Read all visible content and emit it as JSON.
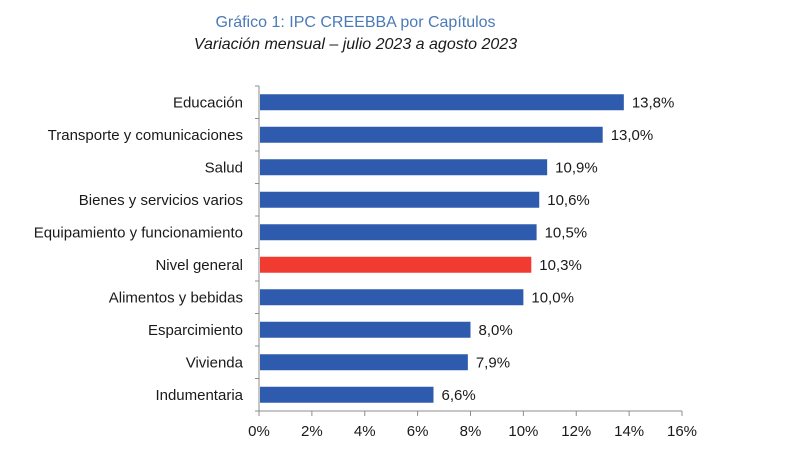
{
  "chart_data": {
    "type": "bar",
    "orientation": "horizontal",
    "title": "Gráfico 1: IPC CREEBBA por Capítulos",
    "subtitle": "Variación mensual – julio 2023 a agosto 2023",
    "xlabel": "",
    "ylabel": "",
    "categories": [
      "Educación",
      "Transporte y comunicaciones",
      "Salud",
      "Bienes y servicios varios",
      "Equipamiento y funcionamiento",
      "Nivel general",
      "Alimentos y bebidas",
      "Esparcimiento",
      "Vivienda",
      "Indumentaria"
    ],
    "values": [
      13.8,
      13.0,
      10.9,
      10.6,
      10.5,
      10.3,
      10.0,
      8.0,
      7.9,
      6.6
    ],
    "value_labels": [
      "13,8%",
      "13,0%",
      "10,9%",
      "10,6%",
      "10,5%",
      "10,3%",
      "10,0%",
      "8,0%",
      "7,9%",
      "6,6%"
    ],
    "highlight_category": "Nivel general",
    "colors": {
      "default": "#2e5bae",
      "highlight": "#f23b30"
    },
    "xlim": [
      0,
      16
    ],
    "xticks": [
      0,
      2,
      4,
      6,
      8,
      10,
      12,
      14,
      16
    ],
    "xtick_labels": [
      "0%",
      "2%",
      "4%",
      "6%",
      "8%",
      "10%",
      "12%",
      "14%",
      "16%"
    ],
    "grid": false,
    "legend": "none"
  }
}
